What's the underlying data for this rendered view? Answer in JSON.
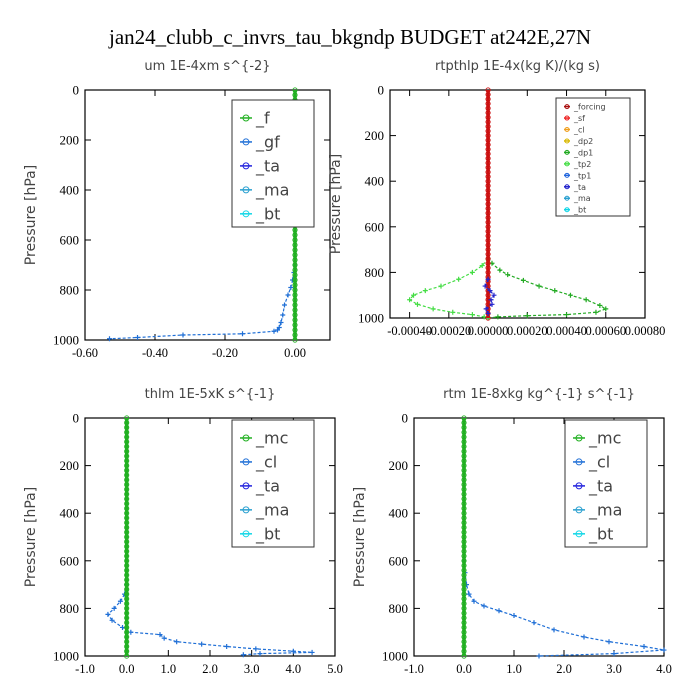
{
  "page_title": "jan24_clubb_c_invrs_tau_bkgndp  BUDGET at242E,27N",
  "colors": {
    "blue_line": "#1f6fd6",
    "green_line": "#22b022",
    "red_line": "#cc1111",
    "legend_box": "#333333"
  },
  "chart_data": [
    {
      "type": "line",
      "title": "um   1E-4xm s^{-2}",
      "ylabel": "Pressure [hPa]",
      "xlim": [
        -0.6,
        0.1
      ],
      "ylim": [
        1000,
        0
      ],
      "y_inverted": true,
      "xticks": [
        "-0.60",
        "-0.40",
        "-0.20",
        "0.00"
      ],
      "yticks": [
        "0",
        "200",
        "400",
        "600",
        "800",
        "1000"
      ],
      "legend_position": "top-right",
      "legend": [
        {
          "label": "_f",
          "color": "#22b022"
        },
        {
          "label": "_gf",
          "color": "#1f6fd6"
        },
        {
          "label": "_ta",
          "color": "#2222dd"
        },
        {
          "label": "_ma",
          "color": "#2aa0d0"
        },
        {
          "label": "_bt",
          "color": "#11d6e6"
        }
      ],
      "series": [
        {
          "name": "_gf",
          "color": "#1f6fd6",
          "x": [
            0,
            0,
            -0.003,
            -0.007,
            -0.012,
            -0.02,
            -0.03,
            -0.035,
            -0.04,
            -0.045,
            -0.05,
            -0.06,
            -0.15,
            -0.32,
            -0.45,
            -0.53
          ],
          "y": [
            500,
            700,
            730,
            760,
            790,
            820,
            860,
            900,
            930,
            950,
            960,
            965,
            975,
            980,
            990,
            995
          ]
        },
        {
          "name": "_f",
          "color": "#22b022",
          "x": [
            0,
            0
          ],
          "y": [
            0,
            1000
          ]
        }
      ]
    },
    {
      "type": "line",
      "title": "rtpthlp   1E-4x(kg K)/(kg s)",
      "ylabel": "Pressure [hPa]",
      "xlim": [
        -0.0005,
        0.0008
      ],
      "ylim": [
        1000,
        0
      ],
      "y_inverted": true,
      "xticks": [
        "-0.00040",
        "-0.00020",
        "0.00000",
        "0.00020",
        "0.00040",
        "0.00060",
        "0.00080"
      ],
      "yticks": [
        "0",
        "200",
        "400",
        "600",
        "800",
        "1000"
      ],
      "legend_position": "top-right",
      "legend": [
        {
          "label": "_forcing",
          "color": "#aa1111"
        },
        {
          "label": "_sf",
          "color": "#ee2222"
        },
        {
          "label": "_cl",
          "color": "#f0a020"
        },
        {
          "label": "_dp2",
          "color": "#d8b800"
        },
        {
          "label": "_dp1",
          "color": "#22aa22"
        },
        {
          "label": "_tp2",
          "color": "#44dd44"
        },
        {
          "label": "_tp1",
          "color": "#2266dd"
        },
        {
          "label": "_ta",
          "color": "#2222cc"
        },
        {
          "label": "_ma",
          "color": "#2aa0d0"
        },
        {
          "label": "_bt",
          "color": "#11d6e6"
        }
      ],
      "series": [
        {
          "name": "_dp1",
          "color": "#22aa22",
          "x": [
            0,
            2e-05,
            6e-05,
            0.0001,
            0.00018,
            0.00026,
            0.00034,
            0.00042,
            0.0005,
            0.00057,
            0.0006,
            0.00055,
            0.0004,
            0.0002,
            5e-05,
            0
          ],
          "y": [
            740,
            760,
            790,
            810,
            835,
            860,
            880,
            900,
            920,
            945,
            960,
            975,
            985,
            990,
            995,
            1000
          ]
        },
        {
          "name": "_tp2",
          "color": "#44dd44",
          "x": [
            0,
            -3e-05,
            -8e-05,
            -0.00015,
            -0.00024,
            -0.00032,
            -0.00038,
            -0.0004,
            -0.00036,
            -0.00028,
            -0.00018,
            -8e-05,
            -2e-05,
            0
          ],
          "y": [
            740,
            770,
            800,
            830,
            860,
            880,
            900,
            920,
            940,
            960,
            975,
            985,
            995,
            1000
          ]
        },
        {
          "name": "_forcing",
          "color": "#cc1111",
          "x": [
            0,
            0
          ],
          "y": [
            0,
            1000
          ]
        },
        {
          "name": "_ta",
          "color": "#2222cc",
          "x": [
            0,
            -1.5e-05,
            1e-05,
            3e-05,
            1.5e-05,
            2e-05,
            -1e-05,
            0
          ],
          "y": [
            830,
            860,
            880,
            900,
            920,
            940,
            960,
            980
          ]
        }
      ]
    },
    {
      "type": "line",
      "title": "thlm   1E-5xK s^{-1}",
      "ylabel": "Pressure [hPa]",
      "xlim": [
        -1.0,
        5.0
      ],
      "ylim": [
        1000,
        0
      ],
      "y_inverted": true,
      "xticks": [
        "-1.0",
        "0.0",
        "1.0",
        "2.0",
        "3.0",
        "4.0",
        "5.0"
      ],
      "yticks": [
        "0",
        "200",
        "400",
        "600",
        "800",
        "1000"
      ],
      "legend_position": "top-right",
      "legend": [
        {
          "label": "_mc",
          "color": "#22b022"
        },
        {
          "label": "_cl",
          "color": "#1f6fd6"
        },
        {
          "label": "_ta",
          "color": "#2222dd"
        },
        {
          "label": "_ma",
          "color": "#2aa0d0"
        },
        {
          "label": "_bt",
          "color": "#11d6e6"
        }
      ],
      "series": [
        {
          "name": "_cl",
          "color": "#1f6fd6",
          "x": [
            0,
            -0.05,
            -0.15,
            -0.3,
            -0.45,
            -0.35,
            -0.1,
            0.1,
            0.8,
            0.9,
            1.2,
            1.8,
            2.4,
            3.1,
            4.0,
            4.45,
            3.2,
            2.8
          ],
          "y": [
            700,
            740,
            770,
            800,
            825,
            850,
            880,
            900,
            910,
            925,
            940,
            950,
            960,
            970,
            980,
            985,
            990,
            995
          ]
        },
        {
          "name": "_mc",
          "color": "#22b022",
          "x": [
            0,
            0
          ],
          "y": [
            0,
            1000
          ]
        }
      ]
    },
    {
      "type": "line",
      "title": "rtm   1E-8xkg kg^{-1} s^{-1}",
      "ylabel": "Pressure [hPa]",
      "xlim": [
        -1.0,
        4.0
      ],
      "ylim": [
        1000,
        0
      ],
      "y_inverted": true,
      "xticks": [
        "-1.0",
        "0.0",
        "1.0",
        "2.0",
        "3.0",
        "4.0"
      ],
      "yticks": [
        "0",
        "200",
        "400",
        "600",
        "800",
        "1000"
      ],
      "legend_position": "top-right",
      "legend": [
        {
          "label": "_mc",
          "color": "#22b022"
        },
        {
          "label": "_cl",
          "color": "#1f6fd6"
        },
        {
          "label": "_ta",
          "color": "#2222dd"
        },
        {
          "label": "_ma",
          "color": "#2aa0d0"
        },
        {
          "label": "_bt",
          "color": "#11d6e6"
        }
      ],
      "series": [
        {
          "name": "_cl",
          "color": "#1f6fd6",
          "x": [
            0,
            0.02,
            0.05,
            0.1,
            0.2,
            0.4,
            0.7,
            1.0,
            1.4,
            1.8,
            2.4,
            2.9,
            3.6,
            4.0,
            3.0,
            1.5
          ],
          "y": [
            600,
            650,
            700,
            740,
            770,
            790,
            810,
            830,
            860,
            890,
            920,
            940,
            960,
            975,
            990,
            1000
          ]
        },
        {
          "name": "_mc",
          "color": "#22b022",
          "x": [
            0,
            0
          ],
          "y": [
            0,
            1000
          ]
        }
      ]
    }
  ]
}
